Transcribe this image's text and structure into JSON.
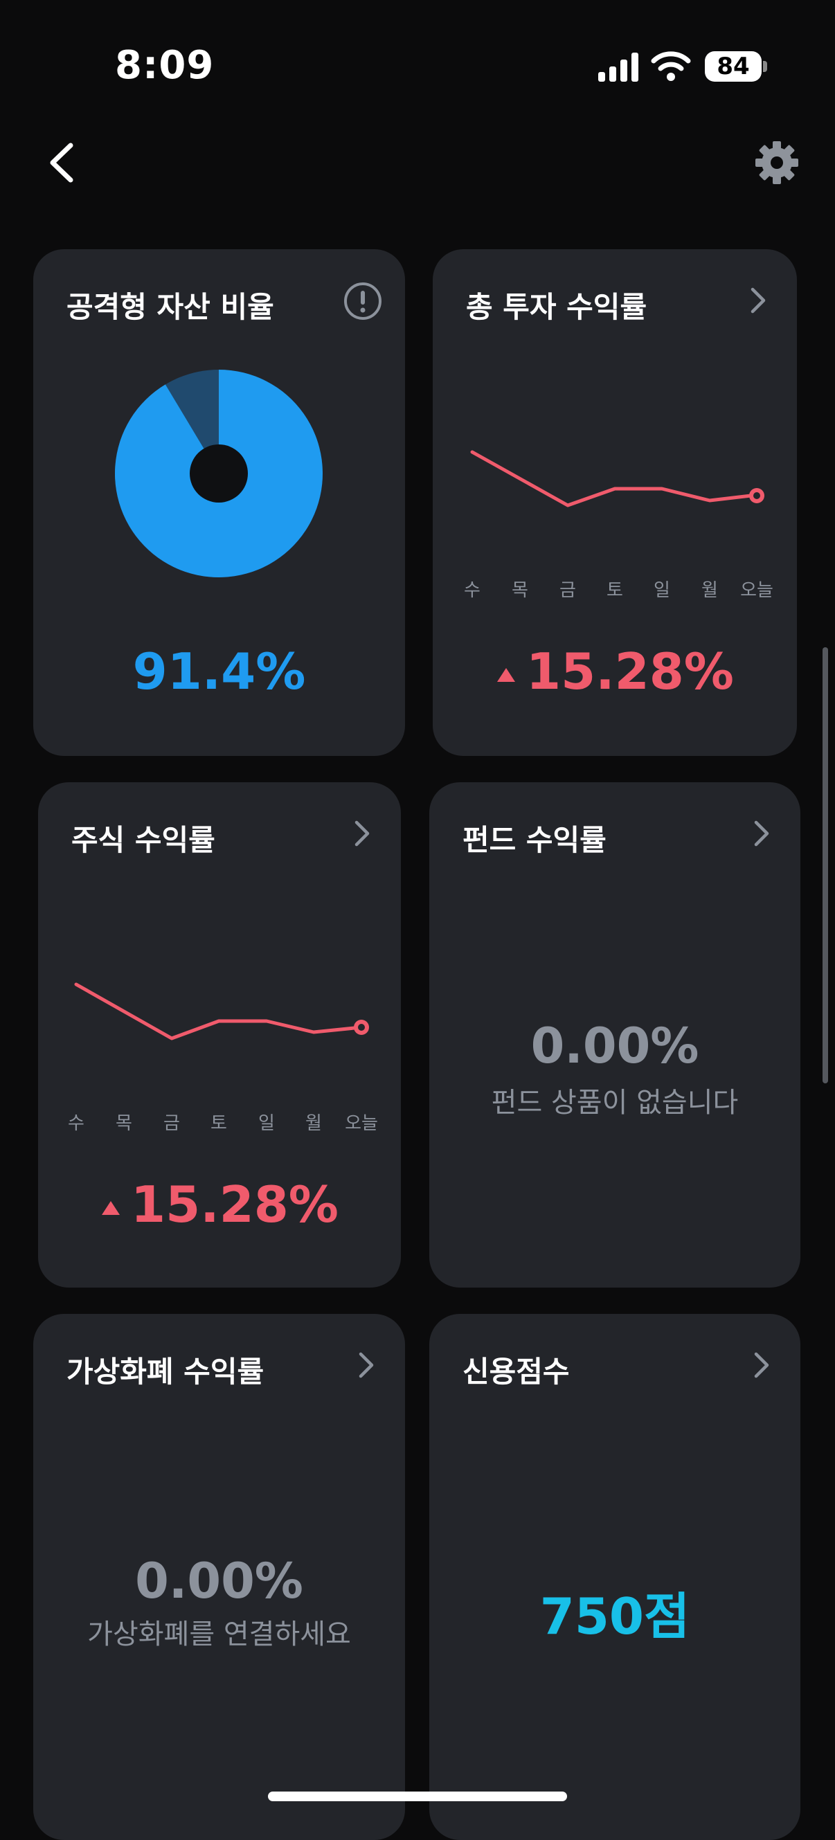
{
  "status": {
    "time": "8:09",
    "battery": "84"
  },
  "cards": {
    "aggressive": {
      "title": "공격형 자산 비율",
      "value": "91.4%",
      "fraction": 0.914
    },
    "total_return": {
      "title": "총 투자 수익률",
      "value": "15.28%",
      "days": [
        "수",
        "목",
        "금",
        "토",
        "일",
        "월",
        "오늘"
      ]
    },
    "stock_return": {
      "title": "주식 수익률",
      "value": "15.28%",
      "days": [
        "수",
        "목",
        "금",
        "토",
        "일",
        "월",
        "오늘"
      ]
    },
    "fund_return": {
      "title": "펀드 수익률",
      "value": "0.00%",
      "sub": "펀드 상품이 없습니다"
    },
    "crypto_return": {
      "title": "가상화폐 수익률",
      "value": "0.00%",
      "sub": "가상화폐를 연결하세요"
    },
    "credit_score": {
      "title": "신용점수",
      "value": "750점"
    }
  },
  "colors": {
    "accent_blue": "#1f9bf0",
    "positive_red": "#f05b6c",
    "teal": "#18c0e8",
    "card_bg": "#23252a"
  },
  "icons": [
    "back-icon",
    "gear-icon",
    "info-icon",
    "chevron-right-icon",
    "up-triangle-icon"
  ]
}
